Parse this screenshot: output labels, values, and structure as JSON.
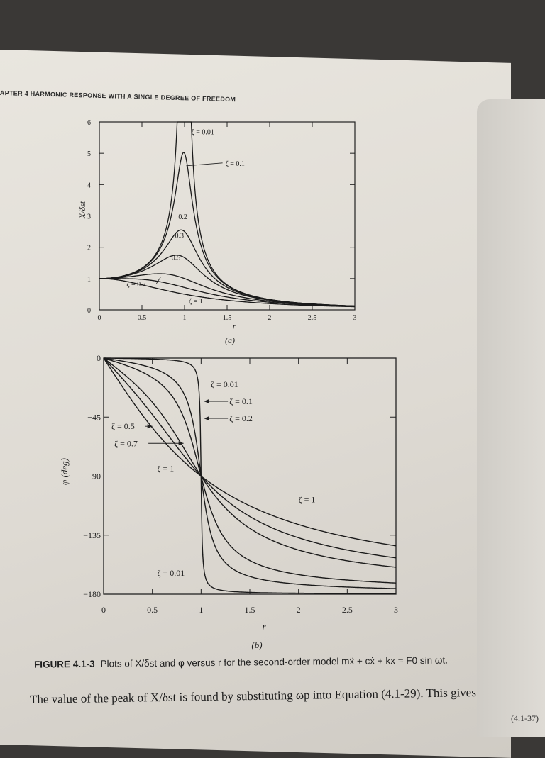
{
  "header": {
    "text": "APTER 4   HARMONIC RESPONSE WITH A SINGLE DEGREE OF FREEDOM"
  },
  "caption": {
    "label": "FIGURE 4.1-3",
    "text": "Plots of X/δst and φ versus r for the second-order model mẍ + cẋ + kx = F0 sin ωt."
  },
  "body_text": "The value of the peak of X/δst is found by substituting ωp into Equation (4.1-29). This gives",
  "equation_number": "(4.1-37)",
  "chart_data": [
    {
      "type": "line",
      "panel_label": "(a)",
      "xlabel": "r",
      "ylabel": "X/δst",
      "xlim": [
        0,
        3
      ],
      "ylim": [
        0,
        6
      ],
      "x_ticks": [
        "0",
        "0.5",
        "1",
        "1.5",
        "2",
        "2.5",
        "3"
      ],
      "y_ticks": [
        "0",
        "1",
        "2",
        "3",
        "4",
        "5",
        "6"
      ],
      "series": [
        {
          "name": "ζ = 0.01",
          "zeta": 0.01
        },
        {
          "name": "ζ = 0.1",
          "zeta": 0.1
        },
        {
          "name": "0.2",
          "zeta": 0.2
        },
        {
          "name": "0.3",
          "zeta": 0.3
        },
        {
          "name": "0.5",
          "zeta": 0.5
        },
        {
          "name": "ζ = 0.7",
          "zeta": 0.7
        },
        {
          "name": "ζ = 1",
          "zeta": 1.0
        }
      ]
    },
    {
      "type": "line",
      "panel_label": "(b)",
      "xlabel": "r",
      "ylabel": "φ (deg)",
      "xlim": [
        0,
        3
      ],
      "ylim": [
        -180,
        0
      ],
      "x_ticks": [
        "0",
        "0.5",
        "1",
        "1.5",
        "2",
        "2.5",
        "3"
      ],
      "y_ticks": [
        "0",
        "−45",
        "−90",
        "−135",
        "−180"
      ],
      "series": [
        {
          "name": "ζ = 0.01",
          "zeta": 0.01
        },
        {
          "name": "ζ = 0.1",
          "zeta": 0.1
        },
        {
          "name": "ζ = 0.2",
          "zeta": 0.2
        },
        {
          "name": "ζ = 0.5",
          "zeta": 0.5
        },
        {
          "name": "ζ = 0.7",
          "zeta": 0.7
        },
        {
          "name": "ζ = 1",
          "zeta": 1.0
        }
      ],
      "annotations": [
        "ζ = 1",
        "ζ = 0.01"
      ]
    }
  ]
}
